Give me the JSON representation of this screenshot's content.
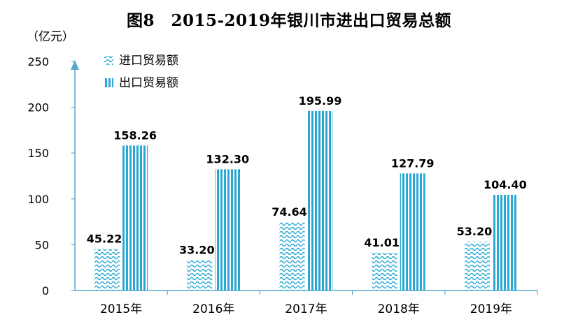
{
  "chart_data": {
    "type": "bar",
    "title": "图8　2015-2019年银川市进出口贸易总额",
    "ylabel": "（亿元）",
    "xlabel": "",
    "categories": [
      "2015年",
      "2016年",
      "2017年",
      "2018年",
      "2019年"
    ],
    "series": [
      {
        "name": "进口贸易额",
        "values": [
          45.22,
          33.2,
          74.64,
          41.01,
          53.2
        ],
        "labels": [
          "45.22",
          "33.20",
          "74.64",
          "41.01",
          "53.20"
        ]
      },
      {
        "name": "出口贸易额",
        "values": [
          158.26,
          132.3,
          195.99,
          127.79,
          104.4
        ],
        "labels": [
          "158.26",
          "132.30",
          "195.99",
          "127.79",
          "104.40"
        ]
      }
    ],
    "ylim": [
      0,
      250
    ],
    "yticks": [
      "0",
      "50",
      "100",
      "150",
      "200",
      "250"
    ],
    "grid": false,
    "legend_position": "top-left",
    "colors": {
      "bar": "#29a8d4",
      "axis": "#5aa9c8",
      "text": "#000000"
    }
  }
}
